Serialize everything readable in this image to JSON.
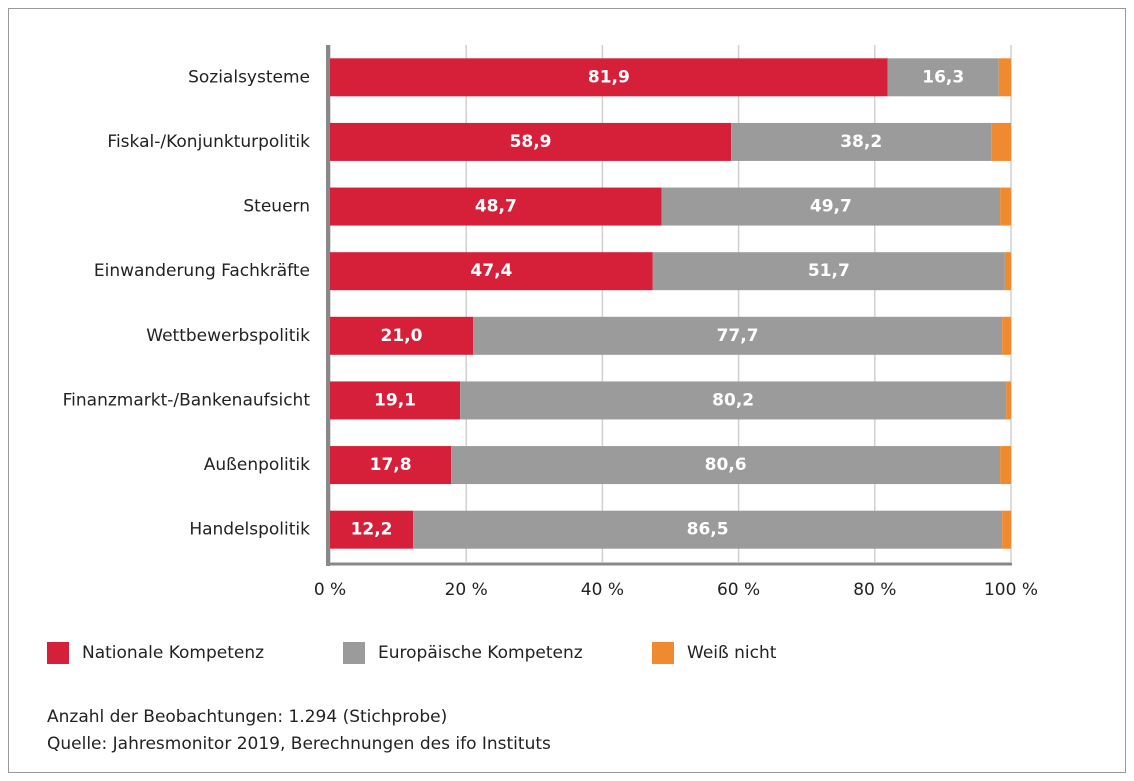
{
  "chart_data": {
    "type": "stacked_barh",
    "categories": [
      "Sozialsysteme",
      "Fiskal-/Konjunkturpolitik",
      "Steuern",
      "Einwanderung Fachkräfte",
      "Wettbewerbspolitik",
      "Finanzmarkt-/Bankenaufsicht",
      "Außenpolitik",
      "Handelspolitik"
    ],
    "series": [
      {
        "name": "Nationale Kompetenz",
        "color": "#d6203a",
        "values": [
          81.9,
          58.9,
          48.7,
          47.4,
          21.0,
          19.1,
          17.8,
          12.2
        ],
        "value_labels": [
          "81,9",
          "58,9",
          "48,7",
          "47,4",
          "21,0",
          "19,1",
          "17,8",
          "12,2"
        ]
      },
      {
        "name": "Europäische Kompetenz",
        "color": "#9b9b9b",
        "values": [
          16.3,
          38.2,
          49.7,
          51.7,
          77.7,
          80.2,
          80.6,
          86.5
        ],
        "value_labels": [
          "16,3",
          "38,2",
          "49,7",
          "51,7",
          "77,7",
          "80,2",
          "80,6",
          "86,5"
        ]
      },
      {
        "name": "Weiß nicht",
        "color": "#f08a30",
        "values": [
          1.8,
          2.9,
          1.6,
          0.9,
          1.3,
          0.7,
          1.6,
          1.3
        ]
      }
    ],
    "xlim": [
      0,
      100
    ],
    "xticks": [
      {
        "value": 0,
        "label": "0 %"
      },
      {
        "value": 20,
        "label": "20 %"
      },
      {
        "value": 40,
        "label": "40 %"
      },
      {
        "value": 60,
        "label": "60 %"
      },
      {
        "value": 80,
        "label": "80 %"
      },
      {
        "value": 100,
        "label": "100 %"
      }
    ],
    "grid": true,
    "notes": [
      "Anzahl der Beobachtungen: 1.294 (Stichprobe)",
      "Quelle: Jahresmonitor 2019, Berechnungen des ifo Instituts"
    ]
  }
}
